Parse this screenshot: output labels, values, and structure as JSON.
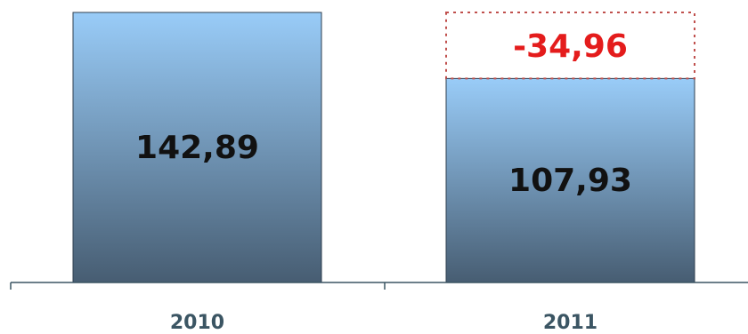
{
  "chart_data": {
    "type": "bar",
    "categories": [
      "2010",
      "2011"
    ],
    "values": [
      142.89,
      107.93
    ],
    "value_labels": [
      "142,89",
      "107,93"
    ],
    "difference": {
      "value": -34.96,
      "label": "-34,96",
      "from": "2010",
      "to": "2011"
    },
    "ylim": [
      0,
      150
    ],
    "grid": false,
    "legend": "none",
    "colors": {
      "bar_top": "#99ccf8",
      "bar_bottom": "#475d72",
      "diff_text": "#e41c1c",
      "diff_border": "#c0504d",
      "axis": "#3b5563"
    }
  }
}
